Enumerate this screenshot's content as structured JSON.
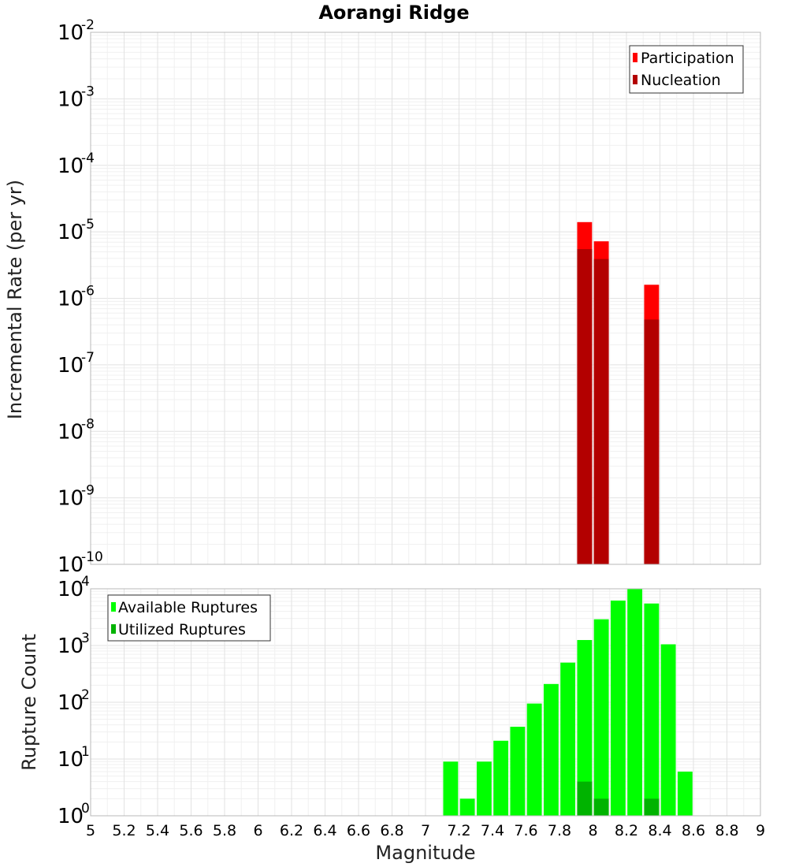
{
  "figure_title": "Aorangi Ridge",
  "chart_data": [
    {
      "type": "bar",
      "scale": "log",
      "title": "Aorangi Ridge",
      "xlabel": "",
      "ylabel": "Incremental Rate (per yr)",
      "xlim": [
        5,
        9
      ],
      "ylim_exponents": [
        -10,
        -2
      ],
      "bin_width": 0.1,
      "legend_position": "top-right",
      "series": [
        {
          "name": "Participation",
          "color": "#ff0000",
          "points": [
            {
              "x": 7.95,
              "y": 1.4e-05
            },
            {
              "x": 8.05,
              "y": 7.2e-06
            },
            {
              "x": 8.35,
              "y": 1.6e-06
            }
          ]
        },
        {
          "name": "Nucleation",
          "color": "#b30000",
          "points": [
            {
              "x": 7.95,
              "y": 5.5e-06
            },
            {
              "x": 8.05,
              "y": 3.9e-06
            },
            {
              "x": 8.35,
              "y": 4.8e-07
            }
          ]
        }
      ],
      "y_tick_base": "10",
      "y_tick_exponents": [
        "-2",
        "-3",
        "-4",
        "-5",
        "-6",
        "-7",
        "-8",
        "-9",
        "-10"
      ]
    },
    {
      "type": "bar",
      "scale": "log",
      "title": "",
      "xlabel": "Magnitude",
      "ylabel": "Rupture Count",
      "xlim": [
        5,
        9
      ],
      "ylim_exponents": [
        0,
        4
      ],
      "bin_width": 0.1,
      "legend_position": "top-left",
      "series": [
        {
          "name": "Available Ruptures",
          "color": "#00ff00",
          "points": [
            {
              "x": 7.15,
              "y": 9
            },
            {
              "x": 7.25,
              "y": 2
            },
            {
              "x": 7.35,
              "y": 9
            },
            {
              "x": 7.45,
              "y": 21
            },
            {
              "x": 7.55,
              "y": 37
            },
            {
              "x": 7.65,
              "y": 95
            },
            {
              "x": 7.75,
              "y": 210
            },
            {
              "x": 7.85,
              "y": 500
            },
            {
              "x": 7.95,
              "y": 1250
            },
            {
              "x": 8.05,
              "y": 2900
            },
            {
              "x": 8.15,
              "y": 6200
            },
            {
              "x": 8.25,
              "y": 10000
            },
            {
              "x": 8.35,
              "y": 5500
            },
            {
              "x": 8.45,
              "y": 1050
            },
            {
              "x": 8.55,
              "y": 6
            }
          ]
        },
        {
          "name": "Utilized Ruptures",
          "color": "#00b300",
          "points": [
            {
              "x": 7.85,
              "y": 1
            },
            {
              "x": 7.95,
              "y": 4
            },
            {
              "x": 8.05,
              "y": 2
            },
            {
              "x": 8.35,
              "y": 2
            }
          ]
        }
      ],
      "y_tick_base": "10",
      "y_tick_exponents": [
        "0",
        "1",
        "2",
        "3",
        "4"
      ],
      "x_tick_labels": [
        "5",
        "5.2",
        "5.4",
        "5.6",
        "5.8",
        "6",
        "6.2",
        "6.4",
        "6.6",
        "6.8",
        "7",
        "7.2",
        "7.4",
        "7.6",
        "7.8",
        "8",
        "8.2",
        "8.4",
        "8.6",
        "8.8",
        "9"
      ]
    }
  ]
}
